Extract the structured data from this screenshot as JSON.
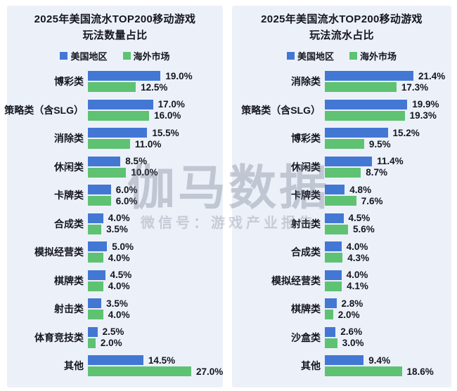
{
  "watermark": {
    "brand": "伽马数据",
    "subtitle": "微信号：游戏产业报告"
  },
  "colors": {
    "us_blue": "#4377D4",
    "overseas_green": "#5EC272",
    "panel_background": "#ECF1F9",
    "text": "#15161F"
  },
  "chart_data": [
    {
      "type": "bar",
      "orientation": "horizontal",
      "title_line1": "2025年美国流水TOP200移动游戏",
      "title_line2": "玩法数量占比",
      "legend": {
        "us": "美国地区",
        "overseas": "海外市场"
      },
      "legend_position": "top",
      "value_label_format": "percent_one_decimal",
      "grid": false,
      "xlim": [
        0,
        27.0
      ],
      "categories": [
        "博彩类",
        "策略类（含SLG）",
        "消除类",
        "休闲类",
        "卡牌类",
        "合成类",
        "模拟经营类",
        "棋牌类",
        "射击类",
        "体育竞技类",
        "其他"
      ],
      "series": [
        {
          "name": "美国地区",
          "color": "#4377D4",
          "values": [
            19.0,
            17.0,
            15.5,
            8.5,
            6.0,
            4.0,
            5.0,
            4.5,
            3.5,
            2.5,
            14.5
          ]
        },
        {
          "name": "海外市场",
          "color": "#5EC272",
          "values": [
            12.5,
            16.0,
            11.0,
            10.0,
            6.0,
            3.5,
            4.0,
            4.0,
            4.0,
            2.0,
            27.0
          ]
        }
      ]
    },
    {
      "type": "bar",
      "orientation": "horizontal",
      "title_line1": "2025年美国流水TOP200移动游戏",
      "title_line2": "玩法流水占比",
      "legend": {
        "us": "美国地区",
        "overseas": "海外市场"
      },
      "legend_position": "top",
      "value_label_format": "percent_one_decimal",
      "grid": false,
      "xlim": [
        0,
        21.4
      ],
      "categories": [
        "消除类",
        "策略类（含SLG）",
        "博彩类",
        "休闲类",
        "卡牌类",
        "射击类",
        "合成类",
        "模拟经营类",
        "棋牌类",
        "沙盒类",
        "其他"
      ],
      "series": [
        {
          "name": "美国地区",
          "color": "#4377D4",
          "values": [
            21.4,
            19.9,
            15.2,
            11.4,
            4.8,
            4.5,
            4.0,
            4.0,
            2.8,
            2.6,
            9.4
          ]
        },
        {
          "name": "海外市场",
          "color": "#5EC272",
          "values": [
            17.3,
            19.3,
            9.5,
            8.7,
            7.6,
            5.6,
            4.3,
            4.1,
            2.0,
            3.0,
            18.6
          ]
        }
      ]
    }
  ]
}
